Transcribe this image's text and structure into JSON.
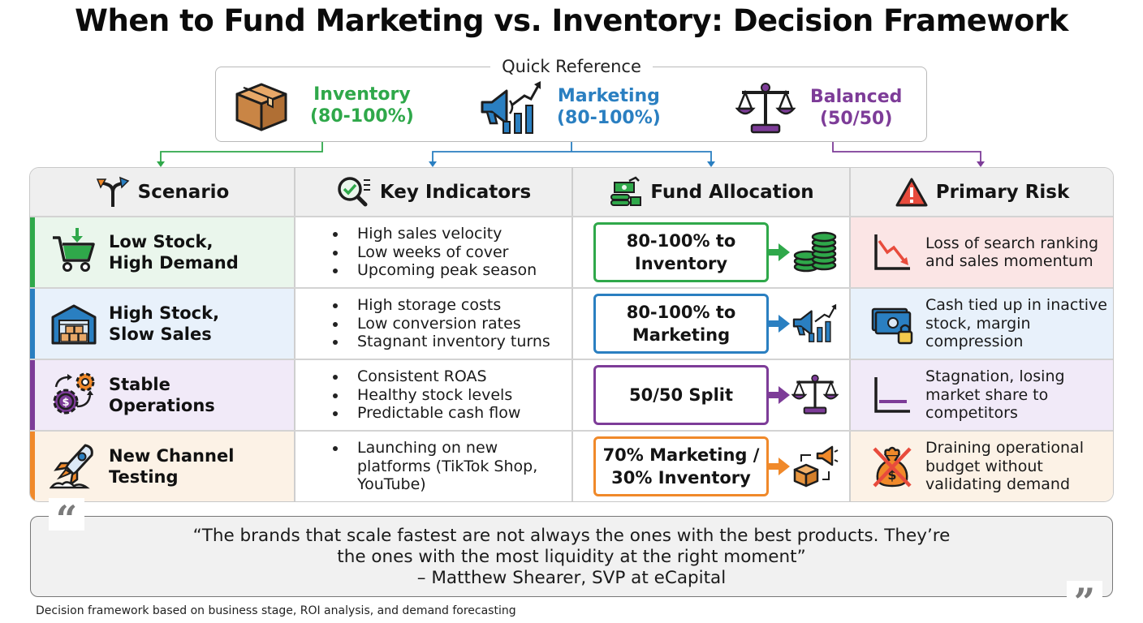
{
  "title": "When to Fund Marketing vs. Inventory: Decision Framework",
  "quick_reference": {
    "label": "Quick Reference",
    "items": [
      {
        "line1": "Inventory",
        "line2": "(80-100%)",
        "color": "#2fa84a",
        "icon": "box-icon"
      },
      {
        "line1": "Marketing",
        "line2": "(80-100%)",
        "color": "#2a7fc1",
        "icon": "megaphone-chart-icon"
      },
      {
        "line1": "Balanced",
        "line2": "(50/50)",
        "color": "#7d3c98",
        "icon": "scales-icon"
      }
    ]
  },
  "table": {
    "headers": [
      {
        "label": "Scenario",
        "icon": "crossroads-icon"
      },
      {
        "label": "Key Indicators",
        "icon": "magnifier-check-icon"
      },
      {
        "label": "Fund Allocation",
        "icon": "money-growth-icon"
      },
      {
        "label": "Primary Risk",
        "icon": "warning-icon"
      }
    ],
    "rows": [
      {
        "scenario": {
          "line1": "Low Stock,",
          "line2": "High Demand",
          "icon": "cart-icon"
        },
        "indicators": [
          "High sales velocity",
          "Low weeks of cover",
          "Upcoming peak season"
        ],
        "allocation": {
          "line1": "80-100% to",
          "line2": "Inventory",
          "icon": "coins-icon"
        },
        "risk": {
          "lines": [
            "Loss of search ranking",
            "and sales momentum"
          ],
          "icon": "downtrend-icon"
        },
        "colors": {
          "bg": "#eaf6ec",
          "accent": "#2fa84a",
          "risk_bg": "#fbe5e5"
        }
      },
      {
        "scenario": {
          "line1": "High Stock,",
          "line2": "Slow Sales",
          "icon": "warehouse-icon"
        },
        "indicators": [
          "High storage costs",
          "Low conversion rates",
          "Stagnant inventory turns"
        ],
        "allocation": {
          "line1": "80-100% to",
          "line2": "Marketing",
          "icon": "megaphone-chart-icon"
        },
        "risk": {
          "lines": [
            "Cash tied up in inactive",
            "stock, margin",
            "compression"
          ],
          "icon": "locked-cash-icon"
        },
        "colors": {
          "bg": "#e8f1fb",
          "accent": "#2a7fc1",
          "risk_bg": "#e8f1fb"
        }
      },
      {
        "scenario": {
          "line1": "Stable",
          "line2": "Operations",
          "icon": "gears-icon"
        },
        "indicators": [
          "Consistent ROAS",
          "Healthy stock levels",
          "Predictable cash flow"
        ],
        "allocation": {
          "line1": "50/50 Split",
          "line2": "",
          "icon": "scales-icon"
        },
        "risk": {
          "lines": [
            "Stagnation, losing",
            "market share to",
            "competitors"
          ],
          "icon": "flat-chart-icon"
        },
        "colors": {
          "bg": "#f1eaf8",
          "accent": "#7d3c98",
          "risk_bg": "#f1eaf8"
        }
      },
      {
        "scenario": {
          "line1": "New Channel",
          "line2": "Testing",
          "icon": "rocket-icon"
        },
        "indicators": [
          "Launching on new",
          "platforms (TikTok Shop,",
          "YouTube)"
        ],
        "allocation": {
          "line1": "70% Marketing /",
          "line2": "30% Inventory",
          "icon": "box-megaphone-icon"
        },
        "risk": {
          "lines": [
            "Draining operational",
            "budget without",
            "validating demand"
          ],
          "icon": "no-money-bag-icon"
        },
        "colors": {
          "bg": "#fcf2e6",
          "accent": "#f0892a",
          "risk_bg": "#fcf2e6"
        }
      }
    ]
  },
  "quote": {
    "line1": "“The brands that scale fastest are not always the ones with the best products. They’re",
    "line2": "the ones with the most liquidity at the right moment”",
    "attribution": "– Matthew Shearer, SVP at eCapital"
  },
  "footer": "Decision framework based on business stage, ROI analysis, and demand forecasting"
}
